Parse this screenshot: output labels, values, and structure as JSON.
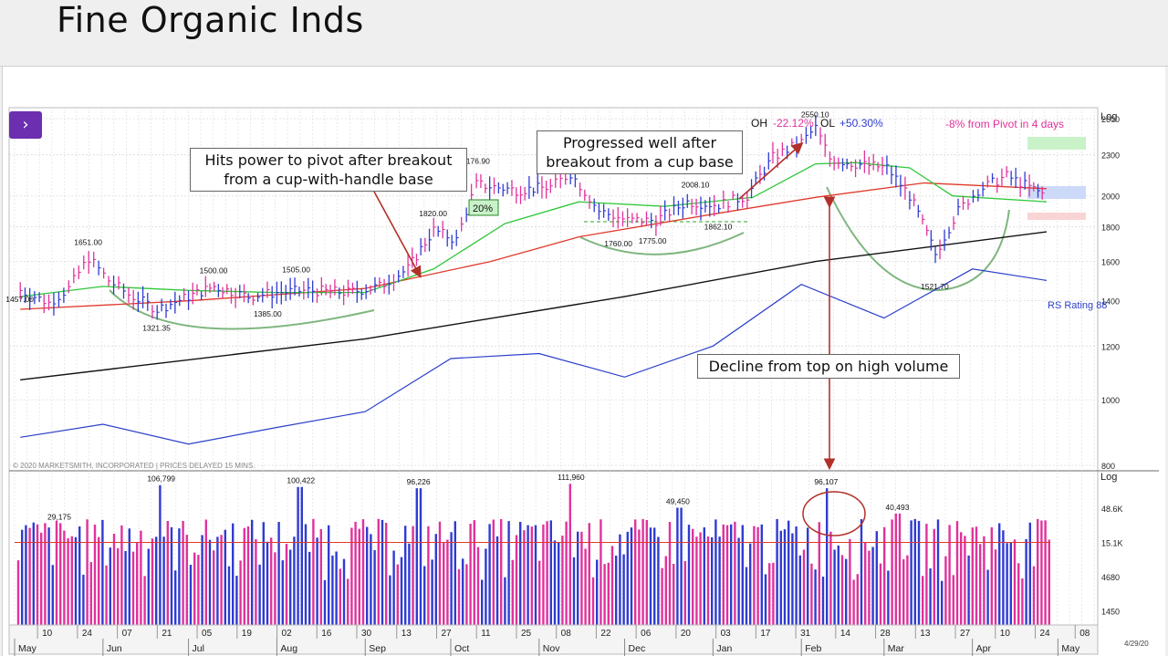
{
  "page": {
    "title": "Fine Organic Inds",
    "nav_button": "›",
    "copyright": "© 2020 MARKETSMITH, INCORPORATED | PRICES DELAYED 15 MINS.",
    "date_stamp": "4/29/20"
  },
  "annotations": {
    "cup_handle": "Hits power to pivot after breakout from a cup-with-handle base",
    "cup_base": "Progressed well after breakout from a cup base",
    "decline": "Decline from top on high volume"
  },
  "header_stats": {
    "oh_label": "OH",
    "oh_value": "-22.12%",
    "ol_label": "OL",
    "ol_value": "+50.30%",
    "pivot_note": "-8% from Pivot in 4 days"
  },
  "chart_data": [
    {
      "type": "line",
      "name": "price",
      "scale": "log",
      "axis_title": "Log",
      "y_ticks": [
        2600,
        2300,
        2000,
        1800,
        1600,
        1400,
        1200,
        1000,
        800
      ],
      "ylim": [
        800,
        2700
      ],
      "series_labels": {
        "rs_line": "RS Rating 88",
        "buy_zone_badge": "20%"
      },
      "price_labels": [
        {
          "label": "1457.00",
          "value": 1457,
          "date": "2019-05-03"
        },
        {
          "label": "1651.00",
          "value": 1651,
          "date": "2019-05-27"
        },
        {
          "label": "1321.35",
          "value": 1321.35,
          "date": "2019-06-20"
        },
        {
          "label": "1500.00",
          "value": 1500,
          "date": "2019-07-10"
        },
        {
          "label": "1385.00",
          "value": 1385,
          "date": "2019-07-29"
        },
        {
          "label": "1505.00",
          "value": 1505,
          "date": "2019-08-08"
        },
        {
          "label": "1820.00",
          "value": 1820,
          "date": "2019-09-25"
        },
        {
          "label": "2176.90",
          "value": 2176.9,
          "date": "2019-10-10"
        },
        {
          "label": "2188.00",
          "value": 2188,
          "date": "2019-11-12"
        },
        {
          "label": "1760.00",
          "value": 1760,
          "date": "2019-11-29"
        },
        {
          "label": "1775.00",
          "value": 1775,
          "date": "2019-12-11"
        },
        {
          "label": "2008.10",
          "value": 2008.1,
          "date": "2019-12-26"
        },
        {
          "label": "1862.10",
          "value": 1862.1,
          "date": "2020-01-03"
        },
        {
          "label": "2550.10",
          "value": 2550.1,
          "date": "2020-02-06"
        },
        {
          "label": "1521.70",
          "value": 1521.7,
          "date": "2020-03-19"
        }
      ],
      "price_path": [
        [
          "2019-05-03",
          1450
        ],
        [
          "2019-05-13",
          1390
        ],
        [
          "2019-05-20",
          1460
        ],
        [
          "2019-05-27",
          1620
        ],
        [
          "2019-06-03",
          1500
        ],
        [
          "2019-06-10",
          1430
        ],
        [
          "2019-06-20",
          1360
        ],
        [
          "2019-07-01",
          1420
        ],
        [
          "2019-07-10",
          1470
        ],
        [
          "2019-07-22",
          1420
        ],
        [
          "2019-08-01",
          1440
        ],
        [
          "2019-08-12",
          1450
        ],
        [
          "2019-08-26",
          1440
        ],
        [
          "2019-09-06",
          1470
        ],
        [
          "2019-09-16",
          1560
        ],
        [
          "2019-09-25",
          1780
        ],
        [
          "2019-10-03",
          1720
        ],
        [
          "2019-10-10",
          2080
        ],
        [
          "2019-10-24",
          2040
        ],
        [
          "2019-11-05",
          2060
        ],
        [
          "2019-11-12",
          2160
        ],
        [
          "2019-11-22",
          1900
        ],
        [
          "2019-12-02",
          1840
        ],
        [
          "2019-12-12",
          1840
        ],
        [
          "2019-12-23",
          1960
        ],
        [
          "2020-01-03",
          1940
        ],
        [
          "2020-01-13",
          2000
        ],
        [
          "2020-01-22",
          2280
        ],
        [
          "2020-02-01",
          2400
        ],
        [
          "2020-02-06",
          2520
        ],
        [
          "2020-02-11",
          2270
        ],
        [
          "2020-02-20",
          2230
        ],
        [
          "2020-03-02",
          2200
        ],
        [
          "2020-03-10",
          2000
        ],
        [
          "2020-03-19",
          1640
        ],
        [
          "2020-03-27",
          1900
        ],
        [
          "2020-04-03",
          2040
        ],
        [
          "2020-04-13",
          2140
        ],
        [
          "2020-04-21",
          2060
        ],
        [
          "2020-04-27",
          2000
        ]
      ],
      "ma_50": [
        [
          "2019-05-03",
          1420
        ],
        [
          "2019-06-01",
          1470
        ],
        [
          "2019-07-01",
          1450
        ],
        [
          "2019-08-01",
          1440
        ],
        [
          "2019-09-01",
          1440
        ],
        [
          "2019-09-25",
          1560
        ],
        [
          "2019-10-20",
          1820
        ],
        [
          "2019-11-15",
          1960
        ],
        [
          "2019-12-15",
          1930
        ],
        [
          "2020-01-15",
          1990
        ],
        [
          "2020-02-06",
          2230
        ],
        [
          "2020-02-20",
          2240
        ],
        [
          "2020-03-10",
          2200
        ],
        [
          "2020-03-25",
          2000
        ],
        [
          "2020-04-27",
          1960
        ]
      ],
      "ma_200": [
        [
          "2019-05-03",
          1360
        ],
        [
          "2019-07-01",
          1400
        ],
        [
          "2019-09-01",
          1460
        ],
        [
          "2019-10-15",
          1600
        ],
        [
          "2019-11-15",
          1740
        ],
        [
          "2020-01-01",
          1880
        ],
        [
          "2020-02-06",
          1990
        ],
        [
          "2020-03-15",
          2090
        ],
        [
          "2020-04-27",
          2050
        ]
      ],
      "rs_line": [
        [
          "2019-05-03",
          880
        ],
        [
          "2019-06-01",
          920
        ],
        [
          "2019-07-01",
          860
        ],
        [
          "2019-08-01",
          910
        ],
        [
          "2019-09-01",
          960
        ],
        [
          "2019-10-01",
          1150
        ],
        [
          "2019-11-01",
          1170
        ],
        [
          "2019-12-01",
          1080
        ],
        [
          "2020-01-01",
          1200
        ],
        [
          "2020-02-01",
          1480
        ],
        [
          "2020-03-01",
          1320
        ],
        [
          "2020-04-01",
          1560
        ],
        [
          "2020-04-27",
          1500
        ]
      ]
    },
    {
      "type": "bar",
      "name": "volume",
      "scale": "log",
      "axis_title": "Log",
      "y_ticks": [
        "48.6K",
        "15.1K",
        "4680",
        "1450"
      ],
      "labeled_peaks": [
        {
          "label": "29,175",
          "value": 29175,
          "date": "2019-05-17"
        },
        {
          "label": "106,799",
          "value": 106799,
          "date": "2019-06-21"
        },
        {
          "label": "100,422",
          "value": 100422,
          "date": "2019-08-09"
        },
        {
          "label": "96,226",
          "value": 96226,
          "date": "2019-09-20"
        },
        {
          "label": "111,960",
          "value": 111960,
          "date": "2019-11-12"
        },
        {
          "label": "49,450",
          "value": 49450,
          "date": "2019-12-20"
        },
        {
          "label": "96,107",
          "value": 96107,
          "date": "2020-02-10"
        },
        {
          "label": "40,493",
          "value": 40493,
          "date": "2020-03-06"
        }
      ],
      "average_volume": 15100
    }
  ],
  "x_axis": {
    "days": [
      "10",
      "24",
      "07",
      "21",
      "05",
      "19",
      "02",
      "16",
      "30",
      "13",
      "27",
      "11",
      "25",
      "08",
      "22",
      "06",
      "20",
      "03",
      "17",
      "31",
      "14",
      "28",
      "13",
      "27",
      "10",
      "24",
      "08"
    ],
    "months": [
      "May",
      "Jun",
      "Jul",
      "Aug",
      "Sep",
      "Oct",
      "Nov",
      "Dec",
      "Jan",
      "Feb",
      "Mar",
      "Apr",
      "May"
    ]
  },
  "colors": {
    "up": "#2f3bd1",
    "down": "#e0329c",
    "ma50": "#2fc73a",
    "ma200": "#e0392a",
    "rs": "#2b3fc9",
    "ma_long": "#111111"
  }
}
